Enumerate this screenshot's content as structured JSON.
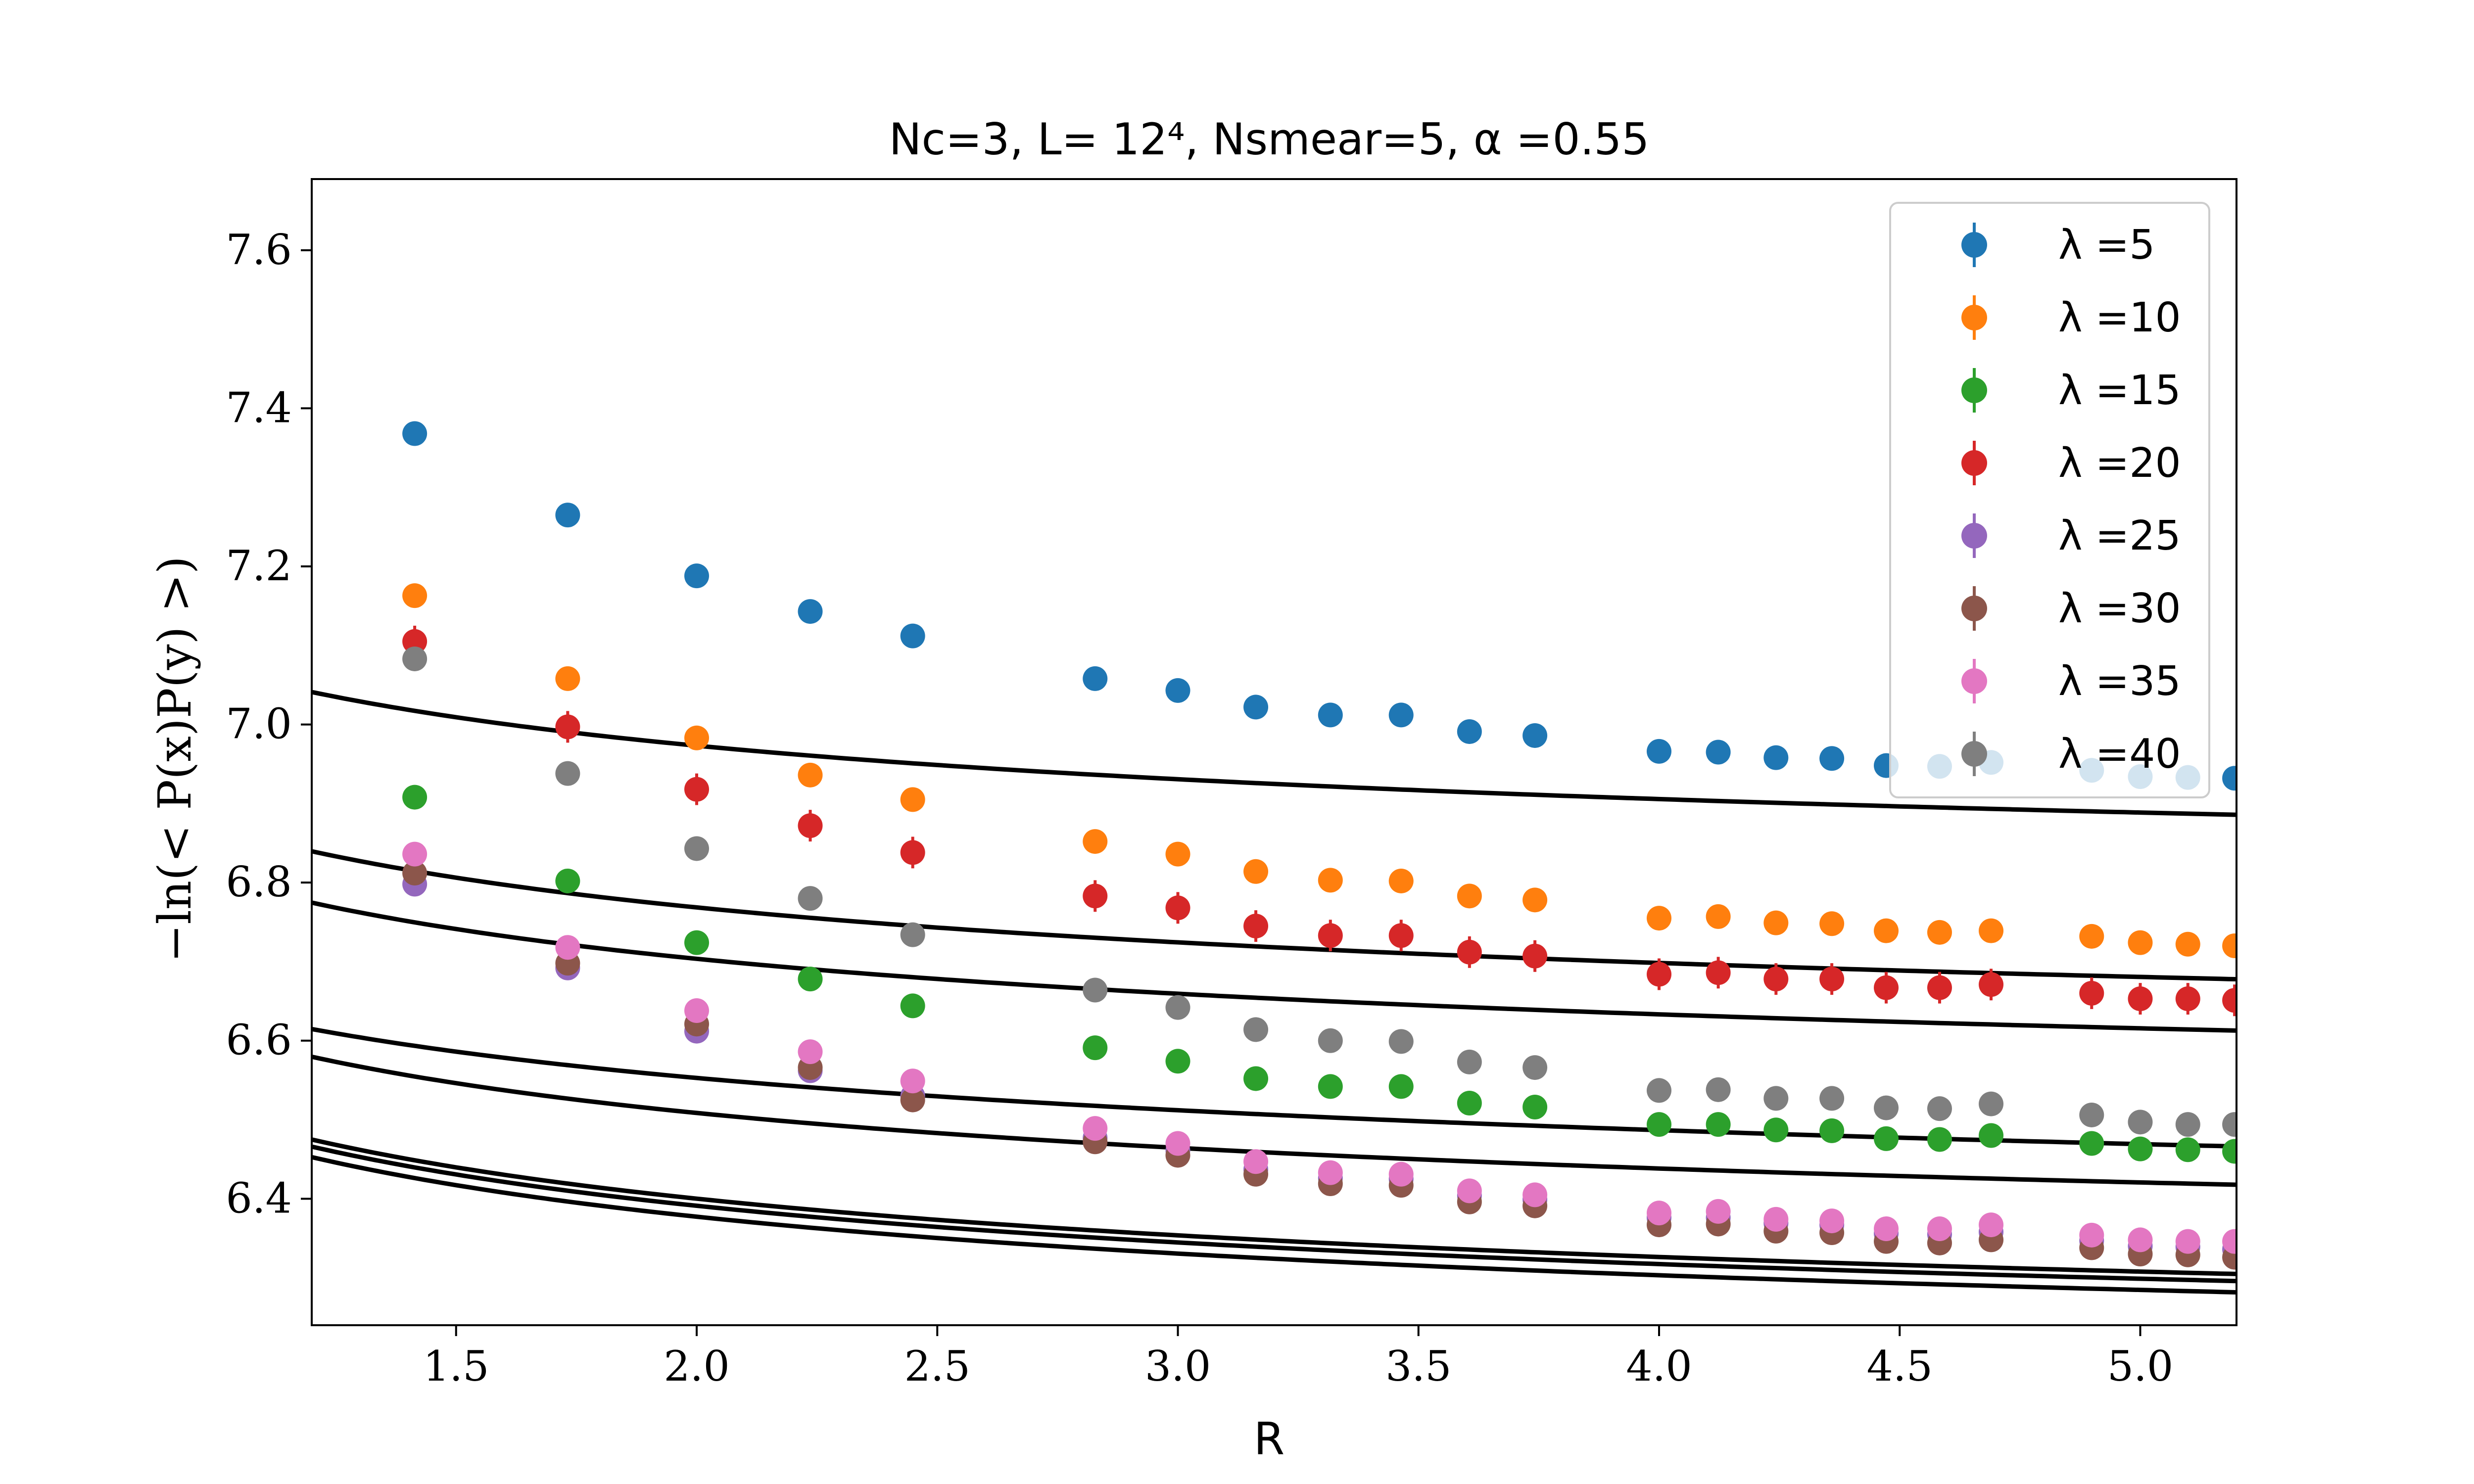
{
  "chart_data": {
    "type": "scatter",
    "title": "Nc=3, L= 12⁴, Nsmear=5, α =0.55",
    "xlabel": "R",
    "ylabel": "−ln(< P(x)P(y) >)",
    "xlim": [
      1.2,
      5.2
    ],
    "ylim": [
      6.24,
      7.69
    ],
    "xticks": [
      1.5,
      2.0,
      2.5,
      3.0,
      3.5,
      4.0,
      4.5,
      5.0
    ],
    "xtick_labels": [
      "1.5",
      "2.0",
      "2.5",
      "3.0",
      "3.5",
      "4.0",
      "4.5",
      "5.0"
    ],
    "yticks": [
      6.4,
      6.6,
      6.8,
      7.0,
      7.2,
      7.4,
      7.6
    ],
    "ytick_labels": [
      "6.4",
      "6.6",
      "6.8",
      "7.0",
      "7.2",
      "7.4",
      "7.6"
    ],
    "grid": false,
    "legend_position": "top-right",
    "x": [
      1.414,
      1.732,
      2.0,
      2.236,
      2.449,
      2.828,
      3.0,
      3.162,
      3.317,
      3.464,
      3.606,
      3.742,
      4.0,
      4.123,
      4.243,
      4.359,
      4.472,
      4.583,
      4.69,
      4.899,
      5.0,
      5.099,
      5.196
    ],
    "series": [
      {
        "name": "λ =5",
        "label_prefix": "λ =",
        "label_value": "5",
        "color": "#1f77b4",
        "values": [
          7.368,
          7.265,
          7.188,
          7.143,
          7.112,
          7.058,
          7.043,
          7.022,
          7.012,
          7.012,
          6.991,
          6.986,
          6.966,
          6.965,
          6.958,
          6.957,
          6.948,
          6.947,
          6.952,
          6.942,
          6.934,
          6.933,
          6.932
        ],
        "errors": [
          0.005,
          0.005,
          0.005,
          0.005,
          0.005,
          0.005,
          0.005,
          0.005,
          0.005,
          0.005,
          0.005,
          0.005,
          0.005,
          0.005,
          0.005,
          0.005,
          0.006,
          0.006,
          0.006,
          0.006,
          0.006,
          0.006,
          0.006
        ],
        "fit": {
          "a": 6.75,
          "b": 0.32,
          "c": 0.52
        }
      },
      {
        "name": "λ =10",
        "label_prefix": "λ =",
        "label_value": "10",
        "color": "#ff7f0e",
        "values": [
          7.163,
          7.058,
          6.983,
          6.936,
          6.905,
          6.852,
          6.836,
          6.814,
          6.803,
          6.802,
          6.783,
          6.778,
          6.755,
          6.757,
          6.749,
          6.748,
          6.739,
          6.737,
          6.739,
          6.732,
          6.724,
          6.722,
          6.72
        ],
        "errors": [
          0.006,
          0.006,
          0.006,
          0.006,
          0.006,
          0.006,
          0.006,
          0.006,
          0.006,
          0.006,
          0.006,
          0.006,
          0.006,
          0.006,
          0.006,
          0.006,
          0.007,
          0.007,
          0.007,
          0.007,
          0.007,
          0.007,
          0.007
        ],
        "fit": {
          "a": 6.54,
          "b": 0.33,
          "c": 0.53
        }
      },
      {
        "name": "λ =15",
        "label_prefix": "λ =",
        "label_value": "15",
        "color": "#2ca02c",
        "values": [
          6.908,
          6.802,
          6.724,
          6.678,
          6.644,
          6.591,
          6.574,
          6.552,
          6.542,
          6.542,
          6.521,
          6.516,
          6.494,
          6.494,
          6.487,
          6.486,
          6.476,
          6.475,
          6.48,
          6.47,
          6.463,
          6.462,
          6.46
        ],
        "errors": [
          0.006,
          0.006,
          0.006,
          0.006,
          0.006,
          0.006,
          0.006,
          0.006,
          0.006,
          0.006,
          0.006,
          0.006,
          0.006,
          0.006,
          0.006,
          0.006,
          0.007,
          0.007,
          0.007,
          0.007,
          0.007,
          0.007,
          0.007
        ],
        "fit": {
          "a": 6.28,
          "b": 0.33,
          "c": 0.53
        }
      },
      {
        "name": "λ =20",
        "label_prefix": "λ =",
        "label_value": "20",
        "color": "#d62728",
        "values": [
          7.105,
          6.997,
          6.918,
          6.872,
          6.838,
          6.783,
          6.768,
          6.745,
          6.733,
          6.733,
          6.712,
          6.707,
          6.684,
          6.686,
          6.678,
          6.678,
          6.667,
          6.667,
          6.671,
          6.66,
          6.653,
          6.653,
          6.651
        ],
        "errors": [
          0.02,
          0.02,
          0.02,
          0.02,
          0.02,
          0.02,
          0.02,
          0.02,
          0.02,
          0.02,
          0.02,
          0.02,
          0.02,
          0.02,
          0.02,
          0.02,
          0.02,
          0.02,
          0.02,
          0.02,
          0.02,
          0.02,
          0.02
        ],
        "fit": {
          "a": 6.475,
          "b": 0.33,
          "c": 0.53
        }
      },
      {
        "name": "λ =25",
        "label_prefix": "λ =",
        "label_value": "25",
        "color": "#9467bd",
        "values": [
          6.798,
          6.692,
          6.612,
          6.562,
          6.53,
          6.477,
          6.461,
          6.437,
          6.426,
          6.425,
          6.404,
          6.399,
          6.376,
          6.376,
          6.369,
          6.367,
          6.356,
          6.355,
          6.358,
          6.347,
          6.34,
          6.339,
          6.336
        ],
        "errors": [
          0.006,
          0.006,
          0.006,
          0.006,
          0.006,
          0.006,
          0.006,
          0.006,
          0.006,
          0.006,
          0.006,
          0.006,
          0.006,
          0.006,
          0.006,
          0.006,
          0.007,
          0.007,
          0.007,
          0.007,
          0.007,
          0.007,
          0.007
        ],
        "fit": {
          "a": 6.153,
          "b": 0.345,
          "c": 0.535
        }
      },
      {
        "name": "λ =30",
        "label_prefix": "λ =",
        "label_value": "30",
        "color": "#8c564b",
        "values": [
          6.812,
          6.698,
          6.621,
          6.566,
          6.525,
          6.472,
          6.455,
          6.431,
          6.419,
          6.417,
          6.396,
          6.391,
          6.367,
          6.368,
          6.359,
          6.357,
          6.346,
          6.344,
          6.348,
          6.338,
          6.33,
          6.329,
          6.326
        ],
        "errors": [
          0.006,
          0.006,
          0.006,
          0.006,
          0.006,
          0.006,
          0.006,
          0.006,
          0.006,
          0.006,
          0.006,
          0.006,
          0.006,
          0.006,
          0.006,
          0.006,
          0.007,
          0.007,
          0.007,
          0.007,
          0.007,
          0.007,
          0.007
        ],
        "fit": {
          "a": 6.14,
          "b": 0.345,
          "c": 0.54
        }
      },
      {
        "name": "λ =35",
        "label_prefix": "λ =",
        "label_value": "35",
        "color": "#e377c2",
        "values": [
          6.836,
          6.718,
          6.638,
          6.586,
          6.549,
          6.489,
          6.47,
          6.447,
          6.433,
          6.431,
          6.41,
          6.405,
          6.382,
          6.384,
          6.374,
          6.372,
          6.362,
          6.362,
          6.367,
          6.354,
          6.348,
          6.346,
          6.346
        ],
        "errors": [
          0.006,
          0.006,
          0.006,
          0.006,
          0.006,
          0.006,
          0.006,
          0.006,
          0.006,
          0.006,
          0.006,
          0.006,
          0.006,
          0.006,
          0.006,
          0.006,
          0.007,
          0.007,
          0.007,
          0.007,
          0.007,
          0.007,
          0.007
        ],
        "fit": {
          "a": 6.162,
          "b": 0.345,
          "c": 0.535
        }
      },
      {
        "name": "λ =40",
        "label_prefix": "λ =",
        "label_value": "40",
        "color": "#7f7f7f",
        "values": [
          7.083,
          6.938,
          6.843,
          6.78,
          6.734,
          6.664,
          6.642,
          6.614,
          6.6,
          6.599,
          6.573,
          6.566,
          6.537,
          6.538,
          6.527,
          6.527,
          6.515,
          6.514,
          6.52,
          6.506,
          6.497,
          6.494,
          6.494
        ],
        "errors": [
          0.006,
          0.006,
          0.006,
          0.006,
          0.006,
          0.006,
          0.006,
          0.006,
          0.006,
          0.006,
          0.006,
          0.006,
          0.006,
          0.006,
          0.006,
          0.006,
          0.007,
          0.007,
          0.007,
          0.007,
          0.007,
          0.007,
          0.007
        ],
        "fit": {
          "a": 6.28,
          "b": 0.36,
          "c": 0.4
        }
      }
    ]
  }
}
